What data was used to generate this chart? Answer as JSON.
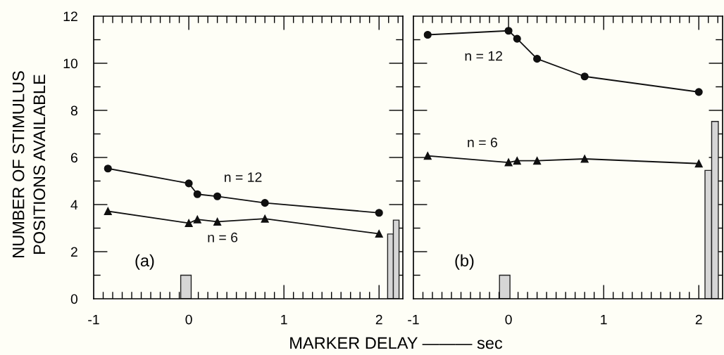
{
  "chart_data": [
    {
      "type": "line",
      "xlabel": "MARKER DELAY ——— sec",
      "ylabel": "NUMBER OF STIMULUS\nPOSITIONS AVAILABLE",
      "xlim": [
        -1,
        2.25
      ],
      "xticks": [
        -1,
        {
          "value": -0.9,
          "label": null
        },
        {
          "value": -0.8,
          "label": null
        },
        {
          "value": -0.7,
          "label": null
        },
        {
          "value": -0.6,
          "label": null
        },
        {
          "value": -0.5,
          "label": null
        },
        {
          "value": -0.4,
          "label": null
        },
        {
          "value": -0.3,
          "label": null
        },
        {
          "value": -0.2,
          "label": null
        },
        {
          "value": -0.1,
          "label": null
        },
        0,
        {
          "value": 0.1,
          "label": null
        },
        {
          "value": 0.2,
          "label": null
        },
        {
          "value": 0.3,
          "label": null
        },
        {
          "value": 0.4,
          "label": null
        },
        {
          "value": 0.5,
          "label": null
        },
        {
          "value": 0.6,
          "label": null
        },
        {
          "value": 0.7,
          "label": null
        },
        {
          "value": 0.8,
          "label": null
        },
        {
          "value": 0.9,
          "label": null
        },
        1,
        {
          "value": 1.1,
          "label": null
        },
        {
          "value": 1.2,
          "label": null
        },
        {
          "value": 1.3,
          "label": null
        },
        {
          "value": 1.4,
          "label": null
        },
        {
          "value": 1.5,
          "label": null
        },
        {
          "value": 1.6,
          "label": null
        },
        {
          "value": 1.7,
          "label": null
        },
        {
          "value": 1.8,
          "label": null
        },
        {
          "value": 1.9,
          "label": null
        },
        2,
        {
          "value": 2.1,
          "label": null
        },
        {
          "value": 2.2,
          "label": null
        }
      ],
      "ylim": [
        0,
        12
      ],
      "yticks": [
        0,
        {
          "value": 1,
          "label": null
        },
        2,
        {
          "value": 3,
          "label": null
        },
        4,
        {
          "value": 5,
          "label": null
        },
        6,
        {
          "value": 7,
          "label": null
        },
        8,
        {
          "value": 9,
          "label": null
        },
        10,
        {
          "value": 11,
          "label": null
        },
        12
      ],
      "line_style": "solid",
      "series": [
        {
          "type": "bar",
          "x": [
            -0.03
          ],
          "values": [
            1
          ],
          "color": "#d6d6d6"
        },
        {
          "type": "bar",
          "x": [
            2.12,
            2.18
          ],
          "values": [
            2.75,
            3.34
          ],
          "color": "#d6d6d6"
        },
        {
          "name": "n = 12",
          "x": [
            -0.85,
            0,
            0.09,
            0.3,
            0.8,
            2.0
          ],
          "values": [
            5.53,
            4.9,
            4.44,
            4.35,
            4.07,
            3.65
          ],
          "color": "#101010",
          "marker": "circle"
        },
        {
          "name": "n = 6",
          "x": [
            -0.85,
            0,
            0.09,
            0.3,
            0.8,
            2.0
          ],
          "values": [
            3.72,
            3.21,
            3.37,
            3.27,
            3.4,
            2.76
          ],
          "color": "#101010",
          "marker": "triangle"
        }
      ],
      "annotations": [
        "(a)"
      ]
    },
    {
      "type": "line",
      "xlim": [
        -1,
        2.25
      ],
      "xticks": [
        -1,
        {
          "value": -0.9,
          "label": null
        },
        {
          "value": -0.8,
          "label": null
        },
        {
          "value": -0.7,
          "label": null
        },
        {
          "value": -0.6,
          "label": null
        },
        {
          "value": -0.5,
          "label": null
        },
        {
          "value": -0.4,
          "label": null
        },
        {
          "value": -0.3,
          "label": null
        },
        {
          "value": -0.2,
          "label": null
        },
        {
          "value": -0.1,
          "label": null
        },
        0,
        {
          "value": 0.1,
          "label": null
        },
        {
          "value": 0.2,
          "label": null
        },
        {
          "value": 0.3,
          "label": null
        },
        {
          "value": 0.4,
          "label": null
        },
        {
          "value": 0.5,
          "label": null
        },
        {
          "value": 0.6,
          "label": null
        },
        {
          "value": 0.7,
          "label": null
        },
        {
          "value": 0.8,
          "label": null
        },
        {
          "value": 0.9,
          "label": null
        },
        1,
        {
          "value": 1.1,
          "label": null
        },
        {
          "value": 1.2,
          "label": null
        },
        {
          "value": 1.3,
          "label": null
        },
        {
          "value": 1.4,
          "label": null
        },
        {
          "value": 1.5,
          "label": null
        },
        {
          "value": 1.6,
          "label": null
        },
        {
          "value": 1.7,
          "label": null
        },
        {
          "value": 1.8,
          "label": null
        },
        {
          "value": 1.9,
          "label": null
        },
        2,
        {
          "value": 2.1,
          "label": null
        },
        {
          "value": 2.2,
          "label": null
        }
      ],
      "ylim": [
        0,
        12
      ],
      "yticks": [
        0,
        {
          "value": 1,
          "label": null
        },
        2,
        {
          "value": 3,
          "label": null
        },
        4,
        {
          "value": 5,
          "label": null
        },
        6,
        {
          "value": 7,
          "label": null
        },
        8,
        {
          "value": 9,
          "label": null
        },
        10,
        {
          "value": 11,
          "label": null
        },
        12
      ],
      "tick_labels": "x",
      "line_style": "solid",
      "series": [
        {
          "type": "bar",
          "x": [
            -0.04
          ],
          "values": [
            1
          ],
          "color": "#d6d6d6"
        },
        {
          "type": "bar",
          "x": [
            2.1,
            2.17
          ],
          "values": [
            5.45,
            7.53
          ],
          "color": "#d6d6d6"
        },
        {
          "name": "n = 12",
          "x": [
            -0.85,
            0,
            0.09,
            0.3,
            0.8,
            2.0
          ],
          "values": [
            11.21,
            11.38,
            11.04,
            10.19,
            9.44,
            8.78
          ],
          "color": "#101010",
          "marker": "circle"
        },
        {
          "name": "n = 6",
          "x": [
            -0.85,
            0,
            0.09,
            0.3,
            0.8,
            2.0
          ],
          "values": [
            6.07,
            5.79,
            5.86,
            5.86,
            5.94,
            5.74
          ],
          "color": "#101010",
          "marker": "triangle"
        }
      ],
      "annotations": [
        "(b)"
      ]
    }
  ]
}
